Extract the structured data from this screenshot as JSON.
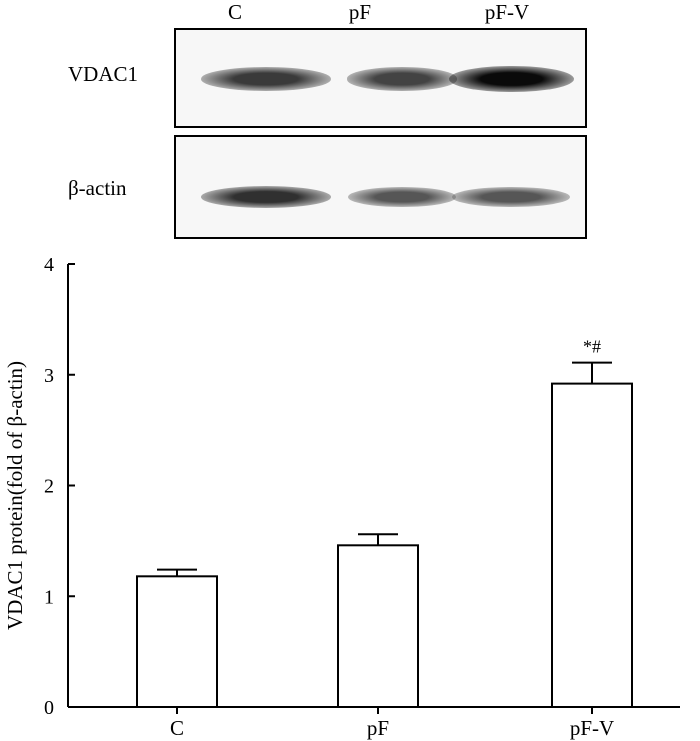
{
  "blot": {
    "lanes": [
      "C",
      "pF",
      "pF-V"
    ],
    "rows": [
      {
        "label": "VDAC1",
        "band_intensity": [
          0.75,
          0.7,
          1.0
        ]
      },
      {
        "label": "β-actin",
        "band_intensity": [
          0.8,
          0.6,
          0.6
        ]
      }
    ]
  },
  "chart_data": {
    "type": "bar",
    "categories": [
      "C",
      "pF",
      "pF-V"
    ],
    "values": [
      1.18,
      1.46,
      2.92
    ],
    "errors": [
      0.06,
      0.1,
      0.19
    ],
    "annotations": [
      "",
      "",
      "*#"
    ],
    "ylabel": "VDAC1 protein(fold of β-actin)",
    "xlabel": "",
    "ylim": [
      0,
      4
    ],
    "yticks": [
      0,
      1,
      2,
      3,
      4
    ],
    "grid": false
  }
}
